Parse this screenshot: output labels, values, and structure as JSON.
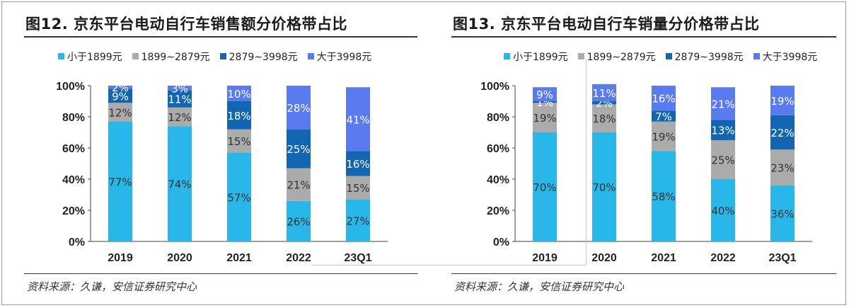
{
  "colors": {
    "lt1899": "#29b6e8",
    "r1899_2879": "#ababab",
    "r2879_3998": "#1265b0",
    "gt3998": "#5a7bf0",
    "axis": "#404040",
    "title_rule": "#1f3864"
  },
  "chart_data": [
    {
      "type": "bar",
      "stacked": true,
      "title": "图12. 京东平台电动自行车销售额分价格带占比",
      "categories": [
        "2019",
        "2020",
        "2021",
        "2022",
        "23Q1"
      ],
      "series": [
        {
          "name": "小于1899元",
          "color_key": "lt1899",
          "values": [
            77,
            74,
            57,
            26,
            27
          ]
        },
        {
          "name": "1899~2879元",
          "color_key": "r1899_2879",
          "values": [
            12,
            12,
            15,
            21,
            15
          ]
        },
        {
          "name": "2879~3998元",
          "color_key": "r2879_3998",
          "values": [
            9,
            11,
            18,
            25,
            16
          ]
        },
        {
          "name": "大于3998元",
          "color_key": "gt3998",
          "values": [
            2,
            3,
            10,
            28,
            41
          ]
        }
      ],
      "yticks": [
        "0%",
        "20%",
        "40%",
        "60%",
        "80%",
        "100%"
      ],
      "ylim": [
        0,
        100
      ],
      "legend_position": "top",
      "source": "资料来源：久谦，安信证券研究中心"
    },
    {
      "type": "bar",
      "stacked": true,
      "title": "图13. 京东平台电动自行车销量分价格带占比",
      "categories": [
        "2019",
        "2020",
        "2021",
        "2022",
        "23Q1"
      ],
      "series": [
        {
          "name": "小于1899元",
          "color_key": "lt1899",
          "values": [
            70,
            70,
            58,
            40,
            36
          ]
        },
        {
          "name": "1899~2879元",
          "color_key": "r1899_2879",
          "values": [
            19,
            18,
            19,
            25,
            23
          ]
        },
        {
          "name": "2879~3998元",
          "color_key": "r2879_3998",
          "values": [
            1,
            2,
            7,
            13,
            22
          ]
        },
        {
          "name": "大于3998元",
          "color_key": "gt3998",
          "values": [
            9,
            11,
            16,
            21,
            19
          ]
        }
      ],
      "yticks": [
        "0%",
        "20%",
        "40%",
        "60%",
        "80%",
        "100%"
      ],
      "ylim": [
        0,
        100
      ],
      "legend_position": "top",
      "source": "资料来源：久谦，安信证券研究中心"
    }
  ]
}
